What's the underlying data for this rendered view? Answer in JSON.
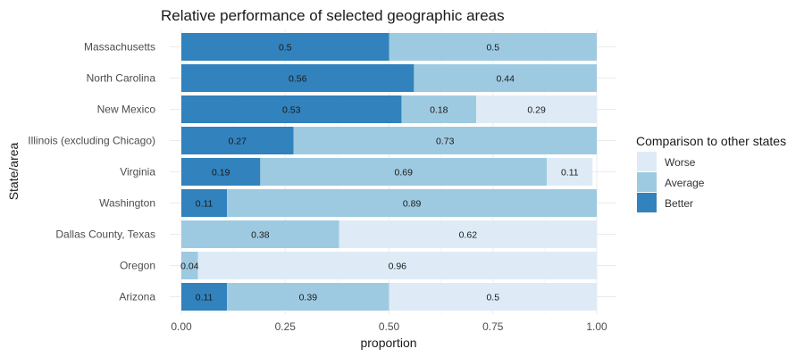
{
  "chart_data": {
    "type": "bar",
    "orientation": "horizontal",
    "stacked": true,
    "title": "Relative performance of selected geographic areas",
    "xlabel": "proportion",
    "ylabel": "State/area",
    "xlim": [
      0,
      1
    ],
    "x_ticks": [
      "0.00",
      "0.25",
      "0.50",
      "0.75",
      "1.00"
    ],
    "grid": true,
    "legend_position": "right",
    "legend_title": "Comparison to other states",
    "categories": [
      "Massachusetts",
      "North Carolina",
      "New Mexico",
      "Illinois (excluding Chicago)",
      "Virginia",
      "Washington",
      "Dallas County, Texas",
      "Oregon",
      "Arizona"
    ],
    "series": [
      {
        "name": "Better",
        "color": "#3182bd",
        "values": [
          0.5,
          0.56,
          0.53,
          0.27,
          0.19,
          0.11,
          0,
          0,
          0.11
        ],
        "labels": [
          "0.5",
          "0.56",
          "0.53",
          "0.27",
          "0.19",
          "0.11",
          "",
          "",
          "0.11"
        ]
      },
      {
        "name": "Average",
        "color": "#9ecae1",
        "values": [
          0.5,
          0.44,
          0.18,
          0.73,
          0.69,
          0.89,
          0.38,
          0.04,
          0.39
        ],
        "labels": [
          "0.5",
          "0.44",
          "0.18",
          "0.73",
          "0.69",
          "0.89",
          "0.38",
          "0.04",
          "0.39"
        ]
      },
      {
        "name": "Worse",
        "color": "#deebf7",
        "values": [
          0,
          0,
          0.29,
          0,
          0.11,
          0,
          0.62,
          0.96,
          0.5
        ],
        "labels": [
          "",
          "",
          "0.29",
          "",
          "0.11",
          "",
          "0.62",
          "0.96",
          "0.5"
        ]
      }
    ],
    "legend_order": [
      "Worse",
      "Average",
      "Better"
    ]
  }
}
